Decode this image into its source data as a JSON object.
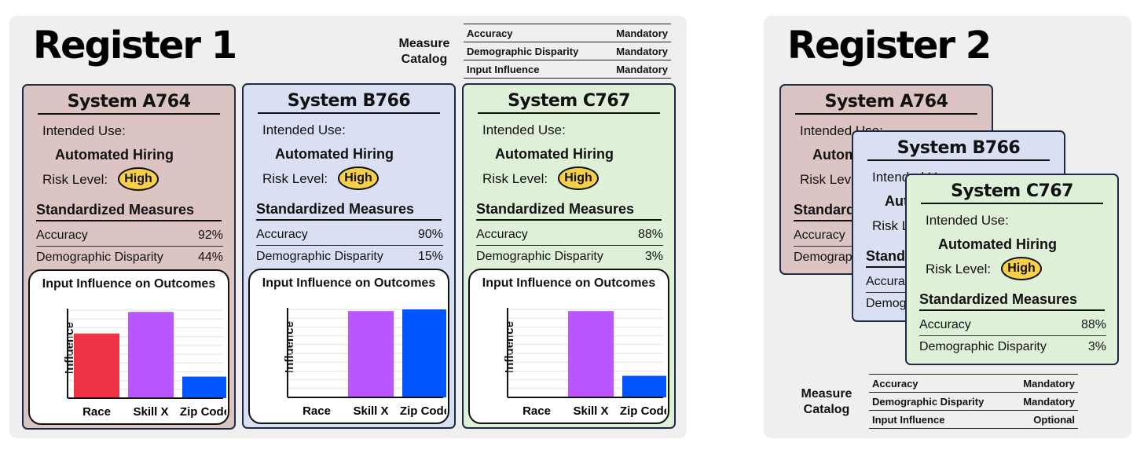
{
  "register1": {
    "title": "Register 1",
    "measure_catalog": {
      "label": "Measure Catalog",
      "rows": [
        {
          "measure": "Accuracy",
          "status": "Mandatory"
        },
        {
          "measure": "Demographic Disparity",
          "status": "Mandatory"
        },
        {
          "measure": "Input Influence",
          "status": "Mandatory"
        }
      ]
    },
    "systems": [
      {
        "name": "System A764",
        "intended_use_label": "Intended Use:",
        "intended_use": "Automated Hiring",
        "risk_label": "Risk Level:",
        "risk": "High",
        "measures_title": "Standardized Measures",
        "measures": [
          {
            "name": "Accuracy",
            "value": "92%"
          },
          {
            "name": "Demographic Disparity",
            "value": "44%"
          }
        ],
        "chart": {
          "title": "Input Influence on Outcomes",
          "ylabel": "Influence",
          "categories": [
            "Race",
            "Skill X",
            "Zip Code"
          ],
          "values": [
            0.75,
            1.0,
            0.25
          ],
          "colors": [
            "#ee3344",
            "#bb55ff",
            "#0055ff"
          ]
        }
      },
      {
        "name": "System B766",
        "intended_use_label": "Intended Use:",
        "intended_use": "Automated Hiring",
        "risk_label": "Risk Level:",
        "risk": "High",
        "measures_title": "Standardized Measures",
        "measures": [
          {
            "name": "Accuracy",
            "value": "90%"
          },
          {
            "name": "Demographic Disparity",
            "value": "15%"
          }
        ],
        "chart": {
          "title": "Input Influence on Outcomes",
          "ylabel": "Influence",
          "categories": [
            "Race",
            "Skill X",
            "Zip Code"
          ],
          "values": [
            0.0,
            1.0,
            1.02
          ],
          "colors": [
            "#ee3344",
            "#bb55ff",
            "#0055ff"
          ]
        }
      },
      {
        "name": "System C767",
        "intended_use_label": "Intended Use:",
        "intended_use": "Automated Hiring",
        "risk_label": "Risk Level:",
        "risk": "High",
        "measures_title": "Standardized Measures",
        "measures": [
          {
            "name": "Accuracy",
            "value": "88%"
          },
          {
            "name": "Demographic Disparity",
            "value": "3%"
          }
        ],
        "chart": {
          "title": "Input Influence on Outcomes",
          "ylabel": "Influence",
          "categories": [
            "Race",
            "Skill X",
            "Zip Code"
          ],
          "values": [
            0.0,
            1.0,
            0.25
          ],
          "colors": [
            "#ee3344",
            "#bb55ff",
            "#0055ff"
          ]
        }
      }
    ]
  },
  "register2": {
    "title": "Register 2",
    "systems": [
      {
        "name": "System A764",
        "intended_use_label": "Intended Use:",
        "intended_use": "Automated Hiring",
        "risk_label": "Risk Level:",
        "measures_title": "Standardized Measures",
        "measures": [
          {
            "name": "Accuracy"
          },
          {
            "name": "Demographic Disparity"
          }
        ]
      },
      {
        "name": "System B766",
        "intended_use_label": "Intended Use:",
        "intended_use": "Automated Hiring",
        "risk_label": "Risk Level:",
        "measures_title": "Standardized Measures",
        "measures": [
          {
            "name": "Accuracy"
          },
          {
            "name": "Demographic Disparity"
          }
        ]
      },
      {
        "name": "System C767",
        "intended_use_label": "Intended Use:",
        "intended_use": "Automated Hiring",
        "risk_label": "Risk Level:",
        "risk": "High",
        "measures_title": "Standardized Measures",
        "measures": [
          {
            "name": "Accuracy",
            "value": "88%"
          },
          {
            "name": "Demographic Disparity",
            "value": "3%"
          }
        ]
      }
    ],
    "measure_catalog": {
      "label": "Measure Catalog",
      "rows": [
        {
          "measure": "Accuracy",
          "status": "Mandatory"
        },
        {
          "measure": "Demographic Disparity",
          "status": "Mandatory"
        },
        {
          "measure": "Input Influence",
          "status": "Optional"
        }
      ]
    }
  },
  "colors": {
    "panel": "#efefef",
    "card_a": "#dcc4c3",
    "card_b": "#d9e0f3",
    "card_c": "#dff0d8",
    "risk_pill": "#f7d04a",
    "bar_race": "#ee3344",
    "bar_skill": "#bb55ff",
    "bar_zip": "#0055ff"
  }
}
